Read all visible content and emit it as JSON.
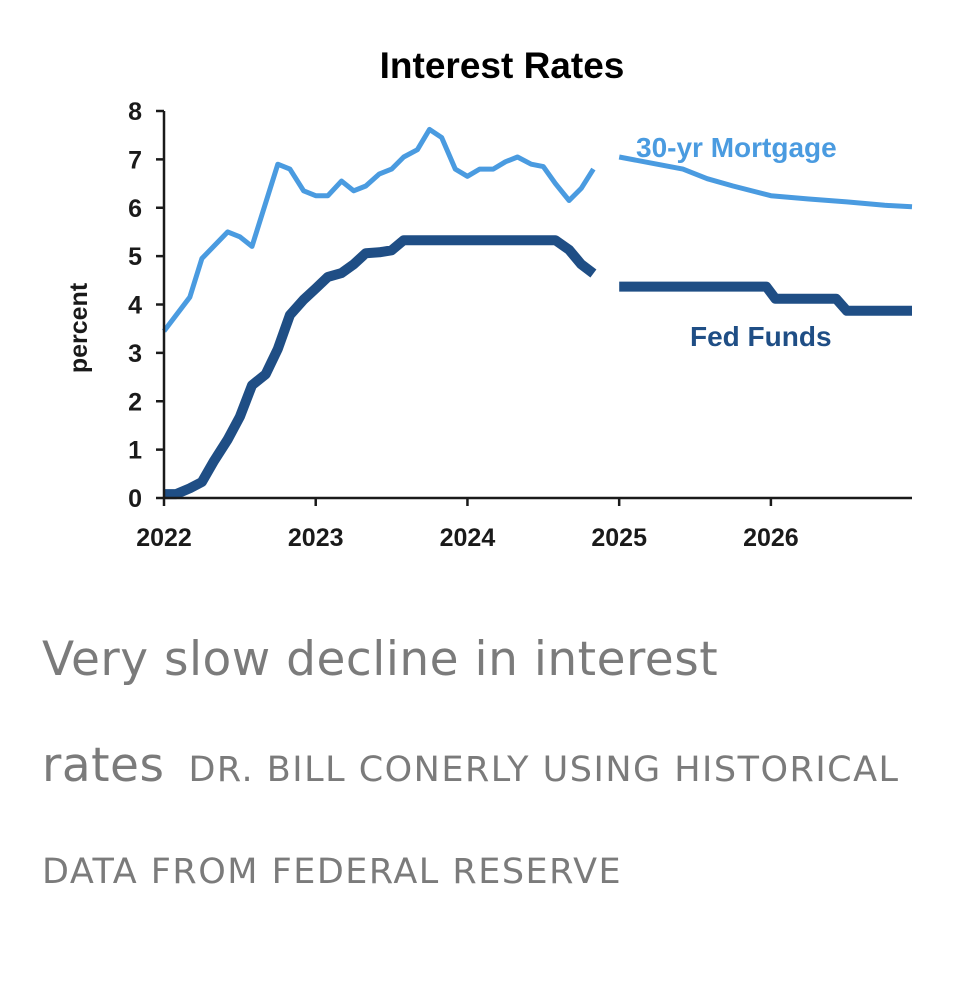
{
  "chart_data": {
    "type": "line",
    "title": "Interest Rates",
    "xlabel": "",
    "ylabel": "percent",
    "xlim": [
      2022,
      2026.93
    ],
    "ylim": [
      0,
      8
    ],
    "x_ticks": [
      "2022",
      "2023",
      "2024",
      "2025",
      "2026"
    ],
    "y_ticks": [
      "0",
      "1",
      "2",
      "3",
      "4",
      "5",
      "6",
      "7",
      "8"
    ],
    "colors": {
      "mortgage": "#4a9be0",
      "fed_funds": "#1f4e85",
      "axis": "#1a1a1a"
    },
    "series": [
      {
        "name": "30-yr Mortgage",
        "segment": "historical",
        "x": [
          2022.0,
          2022.17,
          2022.25,
          2022.42,
          2022.5,
          2022.58,
          2022.75,
          2022.83,
          2022.92,
          2023.0,
          2023.08,
          2023.17,
          2023.25,
          2023.33,
          2023.42,
          2023.5,
          2023.58,
          2023.67,
          2023.75,
          2023.83,
          2023.92,
          2024.0,
          2024.08,
          2024.17,
          2024.25,
          2024.33,
          2024.42,
          2024.5,
          2024.58,
          2024.67,
          2024.75,
          2024.83
        ],
        "values": [
          3.45,
          4.15,
          4.95,
          5.5,
          5.4,
          5.2,
          6.9,
          6.8,
          6.35,
          6.25,
          6.25,
          6.55,
          6.35,
          6.45,
          6.7,
          6.8,
          7.05,
          7.2,
          7.62,
          7.45,
          6.8,
          6.65,
          6.8,
          6.8,
          6.95,
          7.05,
          6.9,
          6.85,
          6.5,
          6.15,
          6.4,
          6.8
        ]
      },
      {
        "name": "30-yr Mortgage",
        "segment": "forecast",
        "x": [
          2025.0,
          2025.25,
          2025.42,
          2025.58,
          2025.75,
          2026.0,
          2026.25,
          2026.5,
          2026.75,
          2026.93
        ],
        "values": [
          7.05,
          6.9,
          6.8,
          6.6,
          6.45,
          6.25,
          6.18,
          6.12,
          6.05,
          6.02
        ]
      },
      {
        "name": "Fed Funds",
        "segment": "historical",
        "x": [
          2022.0,
          2022.08,
          2022.17,
          2022.25,
          2022.33,
          2022.42,
          2022.5,
          2022.58,
          2022.67,
          2022.75,
          2022.83,
          2022.92,
          2023.0,
          2023.08,
          2023.17,
          2023.25,
          2023.33,
          2023.42,
          2023.5,
          2023.58,
          2023.67,
          2023.75,
          2023.83,
          2023.92,
          2024.0,
          2024.08,
          2024.17,
          2024.25,
          2024.33,
          2024.42,
          2024.5,
          2024.58,
          2024.67,
          2024.75,
          2024.83
        ],
        "values": [
          0.08,
          0.08,
          0.2,
          0.33,
          0.77,
          1.21,
          1.68,
          2.33,
          2.56,
          3.08,
          3.78,
          4.1,
          4.33,
          4.57,
          4.65,
          4.83,
          5.06,
          5.08,
          5.12,
          5.33,
          5.33,
          5.33,
          5.33,
          5.33,
          5.33,
          5.33,
          5.33,
          5.33,
          5.33,
          5.33,
          5.33,
          5.33,
          5.13,
          4.83,
          4.64
        ]
      },
      {
        "name": "Fed Funds",
        "segment": "forecast",
        "x": [
          2025.0,
          2025.97,
          2026.03,
          2026.43,
          2026.5,
          2026.93
        ],
        "values": [
          4.37,
          4.37,
          4.12,
          4.12,
          3.87,
          3.87
        ]
      }
    ],
    "series_labels": {
      "mortgage": "30-yr Mortgage",
      "fed_funds": "Fed Funds"
    }
  },
  "caption": {
    "text": "Very slow decline in interest rates",
    "credit": "DR. BILL CONERLY USING HISTORICAL DATA FROM FEDERAL RESERVE"
  }
}
